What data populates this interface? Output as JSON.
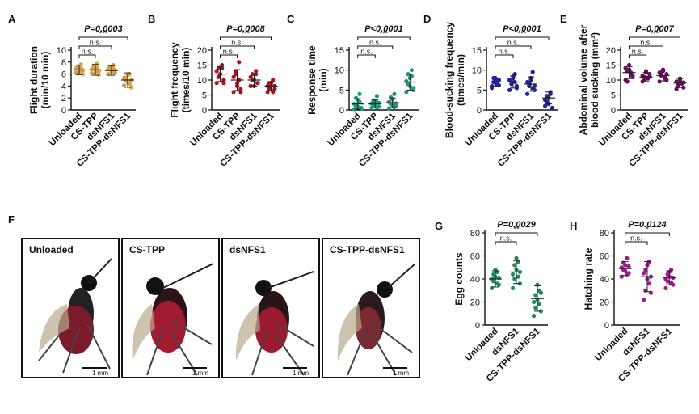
{
  "panels": [
    {
      "letter": "A",
      "type": "scatter",
      "color": "#d4a04a",
      "ylabel": [
        "Flight duration",
        "(min/10 min)"
      ],
      "ylim": [
        0,
        10
      ],
      "yticks": [
        0,
        2,
        4,
        6,
        8,
        10
      ],
      "categories": [
        "Unloaded",
        "CS-TPP",
        "dsNFS1",
        "CS-TPP-dsNFS1"
      ],
      "means": [
        6.7,
        6.7,
        6.6,
        5.0
      ],
      "sd": [
        0.8,
        0.9,
        0.8,
        1.2
      ],
      "points": [
        [
          6.2,
          7.1,
          6.5,
          7.6,
          6.0,
          6.9,
          7.3,
          6.4,
          7.0,
          6.6
        ],
        [
          6.1,
          7.2,
          6.6,
          7.7,
          5.9,
          6.8,
          7.4,
          6.3,
          7.0,
          6.5
        ],
        [
          6.0,
          7.0,
          6.4,
          7.5,
          6.2,
          6.8,
          7.2,
          6.5,
          6.9,
          6.7
        ],
        [
          4.1,
          5.2,
          4.6,
          6.0,
          3.8,
          5.4,
          4.9,
          5.8,
          4.4,
          5.0
        ]
      ],
      "brackets": [
        {
          "from": 0,
          "to": 3,
          "label": "***"
        },
        {
          "from": 0,
          "to": 2,
          "label": "n.s."
        },
        {
          "from": 0,
          "to": 1,
          "label": "n.s."
        }
      ],
      "pvalue": "P=0.0003"
    },
    {
      "letter": "B",
      "type": "scatter",
      "color": "#a8131f",
      "ylabel": [
        "Flight frequency",
        "(times/10 min)"
      ],
      "ylim": [
        0,
        20
      ],
      "yticks": [
        0,
        5,
        10,
        15,
        20
      ],
      "categories": [
        "Unloaded",
        "CS-TPP",
        "dsNFS1",
        "CS-TPP-dsNFS1"
      ],
      "means": [
        12.0,
        10.0,
        10.0,
        8.0
      ],
      "sd": [
        2.5,
        3.5,
        2.0,
        1.5
      ],
      "points": [
        [
          9,
          14,
          12,
          15,
          10,
          13,
          11,
          12,
          14,
          9
        ],
        [
          6,
          13,
          9,
          16,
          7,
          11,
          12,
          8,
          10,
          6
        ],
        [
          8,
          12,
          10,
          13,
          9,
          11,
          10,
          8,
          12,
          9
        ],
        [
          6,
          9,
          8,
          10,
          7,
          8,
          7,
          9,
          6,
          8
        ]
      ],
      "brackets": [
        {
          "from": 0,
          "to": 3,
          "label": "***"
        },
        {
          "from": 0,
          "to": 2,
          "label": "n.s."
        },
        {
          "from": 0,
          "to": 1,
          "label": "n.s."
        }
      ],
      "pvalue": "P=0.0008"
    },
    {
      "letter": "C",
      "type": "scatter",
      "color": "#1f9a7a",
      "ylabel": [
        "Response time",
        "(min)"
      ],
      "ylim": [
        0,
        15
      ],
      "yticks": [
        0,
        5,
        10,
        15
      ],
      "categories": [
        "Unloaded",
        "CS-TPP",
        "dsNFS1",
        "CS-TPP-dsNFS1"
      ],
      "means": [
        1.5,
        1.5,
        1.8,
        7.0
      ],
      "sd": [
        1.3,
        1.0,
        1.2,
        2.0
      ],
      "points": [
        [
          0.2,
          1.0,
          2.5,
          4.0,
          0.5,
          1.5,
          3.0,
          0.8,
          2.0,
          0.3
        ],
        [
          0.5,
          1.2,
          2.0,
          3.5,
          0.8,
          1.6,
          2.4,
          1.0,
          0.6,
          1.8
        ],
        [
          0.4,
          1.5,
          2.6,
          4.0,
          0.9,
          2.0,
          3.2,
          1.2,
          0.7,
          1.6
        ],
        [
          4.5,
          6.5,
          8.0,
          10.0,
          5.5,
          7.2,
          9.0,
          6.0,
          8.5,
          5.0
        ]
      ],
      "brackets": [
        {
          "from": 0,
          "to": 3,
          "label": "***"
        },
        {
          "from": 0,
          "to": 2,
          "label": "n.s."
        },
        {
          "from": 0,
          "to": 1,
          "label": "n.s."
        }
      ],
      "pvalue": "P<0.0001"
    },
    {
      "letter": "D",
      "type": "scatter",
      "color": "#22229a",
      "ylabel": [
        "Blood-sucking frequency",
        "(times/min)"
      ],
      "ylim": [
        0,
        15
      ],
      "yticks": [
        0,
        5,
        10,
        15
      ],
      "categories": [
        "Unloaded",
        "CS-TPP",
        "dsNFS1",
        "CS-TPP-dsNFS1"
      ],
      "means": [
        7.0,
        7.0,
        6.5,
        3.0
      ],
      "sd": [
        1.0,
        1.5,
        1.8,
        1.5
      ],
      "points": [
        [
          6,
          7,
          8,
          6.5,
          7.5,
          5.5,
          8,
          6.8,
          7.2,
          6.2
        ],
        [
          5,
          7,
          8.5,
          9,
          6,
          7.5,
          6.5,
          8,
          7,
          5.5
        ],
        [
          4,
          6,
          8,
          9.5,
          5,
          7,
          6.5,
          7.5,
          5.5,
          6
        ],
        [
          1,
          2,
          3,
          4,
          0.5,
          2.5,
          3.5,
          1.5,
          4.5,
          0.5
        ]
      ],
      "brackets": [
        {
          "from": 0,
          "to": 3,
          "label": "***"
        },
        {
          "from": 0,
          "to": 2,
          "label": "n.s."
        },
        {
          "from": 0,
          "to": 1,
          "label": "n.s."
        }
      ],
      "pvalue": "P<0.0001"
    },
    {
      "letter": "E",
      "type": "scatter",
      "color": "#6a0d5e",
      "ylabel": [
        "Abdominal volume after",
        "blood sucking (mm³)"
      ],
      "ylim": [
        0,
        20
      ],
      "yticks": [
        0,
        5,
        10,
        15,
        20
      ],
      "categories": [
        "Unloaded",
        "CS-TPP",
        "dsNFS1",
        "CS-TPP-dsNFS1"
      ],
      "means": [
        12.5,
        11.0,
        11.5,
        9.0
      ],
      "sd": [
        2.0,
        1.5,
        1.8,
        1.5
      ],
      "points": [
        [
          10,
          13,
          15,
          12,
          11,
          14,
          9.5,
          13.5,
          12.5,
          11.5
        ],
        [
          9.5,
          11,
          13,
          10.5,
          12,
          11.5,
          10,
          12.5,
          10.8,
          11.2
        ],
        [
          9.5,
          12,
          13.5,
          11,
          10,
          12.5,
          11.5,
          13,
          10.5,
          12
        ],
        [
          7,
          8.5,
          10,
          9,
          7.5,
          9.5,
          8,
          10.5,
          8.8,
          9.2
        ]
      ],
      "brackets": [
        {
          "from": 0,
          "to": 3,
          "label": "***"
        },
        {
          "from": 0,
          "to": 2,
          "label": "n.s."
        },
        {
          "from": 0,
          "to": 1,
          "label": "n.s."
        }
      ],
      "pvalue": "P=0.0007"
    },
    {
      "letter": "G",
      "type": "scatter",
      "color": "#1f8a5a",
      "ylabel": [
        "Egg counts"
      ],
      "ylim": [
        0,
        80
      ],
      "yticks": [
        0,
        20,
        40,
        60,
        80
      ],
      "categories": [
        "Unloaded",
        "dsNFS1",
        "CS-TPP-dsNFS1"
      ],
      "means": [
        40,
        46,
        23
      ],
      "sd": [
        7,
        10,
        11
      ],
      "points": [
        [
          32,
          38,
          42,
          46,
          35,
          40,
          44,
          48,
          36,
          41
        ],
        [
          32,
          40,
          48,
          55,
          36,
          44,
          52,
          58,
          42,
          46
        ],
        [
          8,
          15,
          22,
          30,
          12,
          20,
          26,
          35,
          18,
          28
        ]
      ],
      "brackets": [
        {
          "from": 0,
          "to": 2,
          "label": "**"
        },
        {
          "from": 0,
          "to": 1,
          "label": "n.s."
        }
      ],
      "pvalue": "P=0.0029"
    },
    {
      "letter": "H",
      "type": "scatter",
      "color": "#a01890",
      "ylabel": [
        "Hatching rate"
      ],
      "ylim": [
        0,
        80
      ],
      "yticks": [
        0,
        20,
        40,
        60,
        80
      ],
      "categories": [
        "Unloaded",
        "dsNFS1",
        "CS-TPP-dsNFS1"
      ],
      "means": [
        49,
        42,
        41
      ],
      "sd": [
        6,
        13,
        6
      ],
      "points": [
        [
          42,
          48,
          52,
          58,
          45,
          50,
          54,
          47,
          44,
          51
        ],
        [
          22,
          30,
          40,
          55,
          28,
          45,
          48,
          52,
          36,
          42
        ],
        [
          32,
          38,
          42,
          48,
          35,
          40,
          44,
          46,
          37,
          41
        ]
      ],
      "brackets": [
        {
          "from": 0,
          "to": 2,
          "label": "*"
        },
        {
          "from": 0,
          "to": 1,
          "label": "n.s."
        }
      ],
      "pvalue": "P=0.0124"
    }
  ],
  "photos": {
    "letter": "F",
    "items": [
      {
        "label": "Unloaded",
        "scale": "1 mm"
      },
      {
        "label": "CS-TPP",
        "scale": "1 mm"
      },
      {
        "label": "dsNFS1",
        "scale": "1 mm"
      },
      {
        "label": "CS-TPP-dsNFS1",
        "scale": "1 mm"
      }
    ]
  },
  "chart_data": [
    {
      "type": "scatter",
      "panel": "A",
      "ylabel": "Flight duration (min/10 min)",
      "categories": [
        "Unloaded",
        "CS-TPP",
        "dsNFS1",
        "CS-TPP-dsNFS1"
      ],
      "means": [
        6.7,
        6.7,
        6.6,
        5.0
      ],
      "ylim": [
        0,
        10
      ],
      "annotations": [
        "P=0.0003",
        "***",
        "n.s.",
        "n.s."
      ]
    },
    {
      "type": "scatter",
      "panel": "B",
      "ylabel": "Flight frequency (times/10 min)",
      "categories": [
        "Unloaded",
        "CS-TPP",
        "dsNFS1",
        "CS-TPP-dsNFS1"
      ],
      "means": [
        12,
        10,
        10,
        8
      ],
      "ylim": [
        0,
        20
      ],
      "annotations": [
        "P=0.0008",
        "***",
        "n.s.",
        "n.s."
      ]
    },
    {
      "type": "scatter",
      "panel": "C",
      "ylabel": "Response time (min)",
      "categories": [
        "Unloaded",
        "CS-TPP",
        "dsNFS1",
        "CS-TPP-dsNFS1"
      ],
      "means": [
        1.5,
        1.5,
        1.8,
        7.0
      ],
      "ylim": [
        0,
        15
      ],
      "annotations": [
        "P<0.0001",
        "***",
        "n.s.",
        "n.s."
      ]
    },
    {
      "type": "scatter",
      "panel": "D",
      "ylabel": "Blood-sucking frequency (times/min)",
      "categories": [
        "Unloaded",
        "CS-TPP",
        "dsNFS1",
        "CS-TPP-dsNFS1"
      ],
      "means": [
        7,
        7,
        6.5,
        3
      ],
      "ylim": [
        0,
        15
      ],
      "annotations": [
        "P<0.0001",
        "***",
        "n.s.",
        "n.s."
      ]
    },
    {
      "type": "scatter",
      "panel": "E",
      "ylabel": "Abdominal volume after blood sucking (mm³)",
      "categories": [
        "Unloaded",
        "CS-TPP",
        "dsNFS1",
        "CS-TPP-dsNFS1"
      ],
      "means": [
        12.5,
        11,
        11.5,
        9
      ],
      "ylim": [
        0,
        20
      ],
      "annotations": [
        "P=0.0007",
        "***",
        "n.s.",
        "n.s."
      ]
    },
    {
      "type": "scatter",
      "panel": "G",
      "ylabel": "Egg counts",
      "categories": [
        "Unloaded",
        "dsNFS1",
        "CS-TPP-dsNFS1"
      ],
      "means": [
        40,
        46,
        23
      ],
      "ylim": [
        0,
        80
      ],
      "annotations": [
        "P=0.0029",
        "**",
        "n.s."
      ]
    },
    {
      "type": "scatter",
      "panel": "H",
      "ylabel": "Hatching rate",
      "categories": [
        "Unloaded",
        "dsNFS1",
        "CS-TPP-dsNFS1"
      ],
      "means": [
        49,
        42,
        41
      ],
      "ylim": [
        0,
        80
      ],
      "annotations": [
        "P=0.0124",
        "*",
        "n.s."
      ]
    }
  ]
}
